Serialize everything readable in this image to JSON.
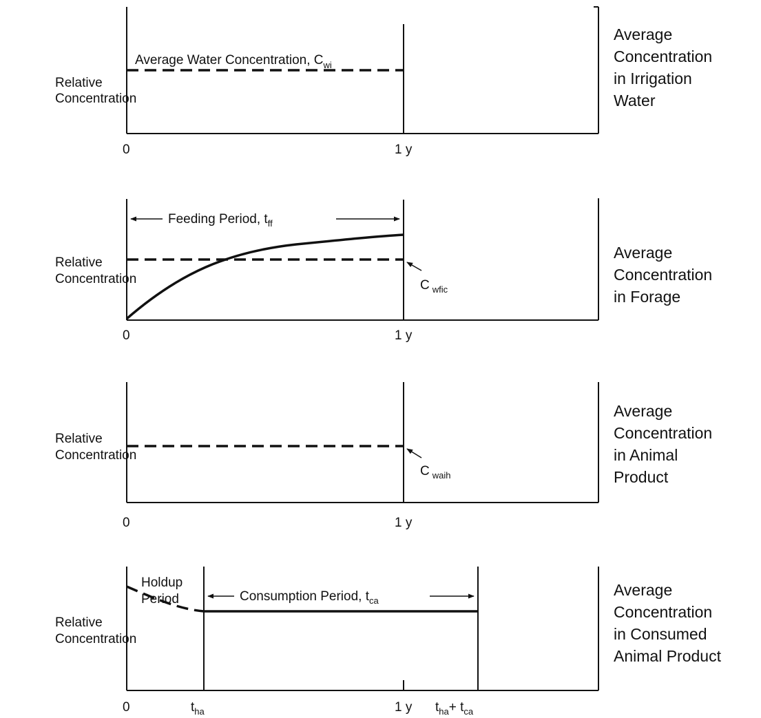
{
  "panels": [
    {
      "ylabel": [
        "Relative",
        "Concentration"
      ],
      "title": [
        "Average",
        "Concentration",
        "in Irrigation",
        "Water"
      ],
      "x_ticks": [
        "0",
        "1 y"
      ],
      "line_label": "Average Water Concentration, C",
      "line_label_sub": "wi"
    },
    {
      "ylabel": [
        "Relative",
        "Concentration"
      ],
      "title": [
        "Average",
        "Concentration",
        "in Forage"
      ],
      "x_ticks": [
        "0",
        "1 y"
      ],
      "period_label": "Feeding Period, t",
      "period_label_sub": "ff",
      "avg_label": "C",
      "avg_label_sub": "wfic"
    },
    {
      "ylabel": [
        "Relative",
        "Concentration"
      ],
      "title": [
        "Average",
        "Concentration",
        "in Animal",
        "Product"
      ],
      "x_ticks": [
        "0",
        "1 y"
      ],
      "avg_label": "C",
      "avg_label_sub": "waih"
    },
    {
      "ylabel": [
        "Relative",
        "Concentration"
      ],
      "title": [
        "Average",
        "Concentration",
        "in Consumed",
        "Animal Product"
      ],
      "x_ticks": [
        "0",
        "1 y"
      ],
      "holdup_label": [
        "Holdup",
        "Period"
      ],
      "period_label": "Consumption Period, t",
      "period_label_sub": "ca",
      "tick_tha": "t",
      "tick_tha_sub": "ha",
      "tick_sum_a": "t",
      "tick_sum_a_sub": "ha",
      "tick_sum_plus": "+ t",
      "tick_sum_b_sub": "ca"
    }
  ]
}
